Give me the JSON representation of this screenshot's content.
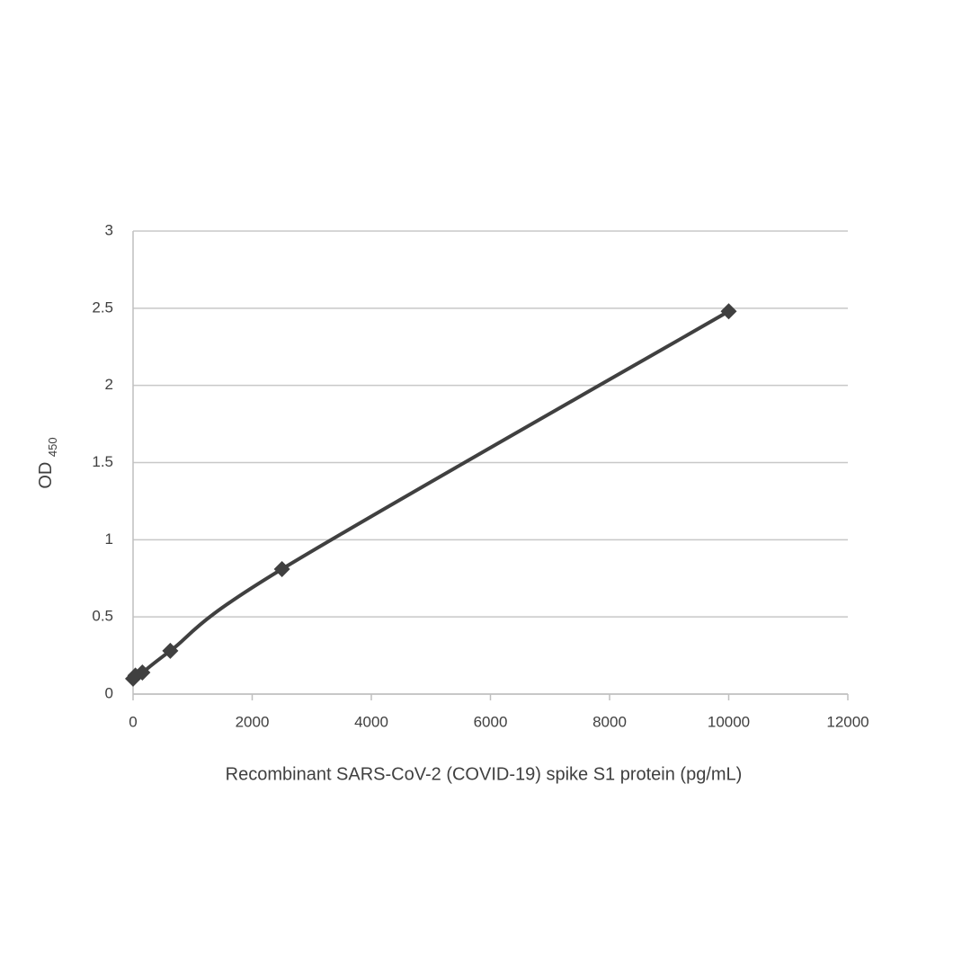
{
  "chart_data": {
    "type": "line",
    "x_label": "Recombinant SARS-CoV-2 (COVID-19) spike S1 protein (pg/mL)",
    "y_label": "OD",
    "y_label_subscript": "450",
    "x": [
      0,
      39,
      156,
      625,
      2500,
      10000
    ],
    "series": [
      {
        "color": "#404040",
        "values": [
          0.1,
          0.12,
          0.14,
          0.28,
          0.81,
          2.48
        ]
      }
    ],
    "xlim": [
      0,
      12000
    ],
    "xticks": [
      0,
      2000,
      4000,
      6000,
      8000,
      10000,
      12000
    ],
    "ylim": [
      0,
      3
    ],
    "yticks": [
      0,
      0.5,
      1,
      1.5,
      2,
      2.5,
      3
    ],
    "grid": true,
    "smooth": true
  }
}
